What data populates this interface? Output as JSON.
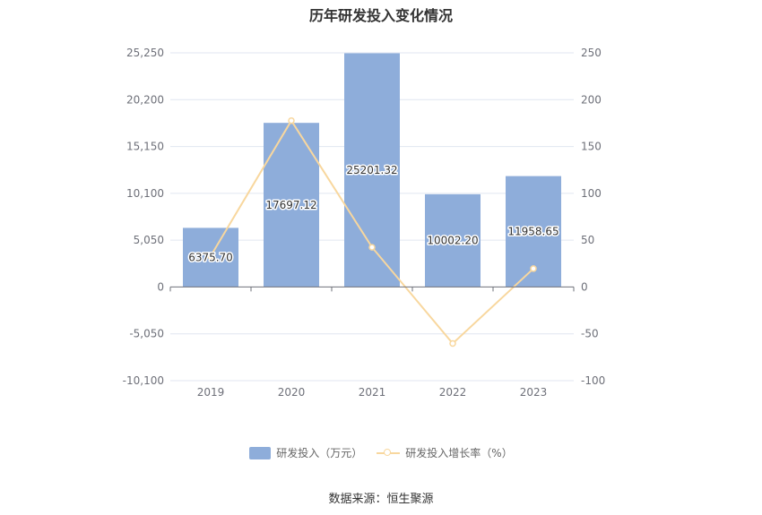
{
  "chart_data": {
    "type": "bar",
    "title": "历年研发投入变化情况",
    "categories": [
      "2019",
      "2020",
      "2021",
      "2022",
      "2023"
    ],
    "series": [
      {
        "name": "研发投入（万元）",
        "type": "bar",
        "axis": "left",
        "values": [
          6375.7,
          17697.12,
          25201.32,
          10002.2,
          11958.65
        ],
        "labels": [
          "6375.70",
          "17697.12",
          "25201.32",
          "10002.20",
          "11958.65"
        ],
        "color": "#8eadda"
      },
      {
        "name": "研发投入增长率（%）",
        "type": "line",
        "axis": "right",
        "values": [
          33,
          177.6,
          42.4,
          -60.3,
          19.6
        ],
        "color": "#f8d79e"
      }
    ],
    "left_axis": {
      "ylim": [
        -10100,
        25250
      ],
      "ticks": [
        25250,
        20200,
        15150,
        10100,
        5050,
        0,
        -5050,
        -10100
      ],
      "tick_labels": [
        "25,250",
        "20,200",
        "15,150",
        "10,100",
        "5,050",
        "0",
        "-5,050",
        "-10,100"
      ]
    },
    "right_axis": {
      "ylim": [
        -100,
        250
      ],
      "ticks": [
        250,
        200,
        150,
        100,
        50,
        0,
        -50,
        -100
      ],
      "tick_labels": [
        "250",
        "200",
        "150",
        "100",
        "50",
        "0",
        "-50",
        "-100"
      ]
    },
    "grid": true,
    "legend_position": "bottom"
  },
  "source": "数据来源：恒生聚源"
}
